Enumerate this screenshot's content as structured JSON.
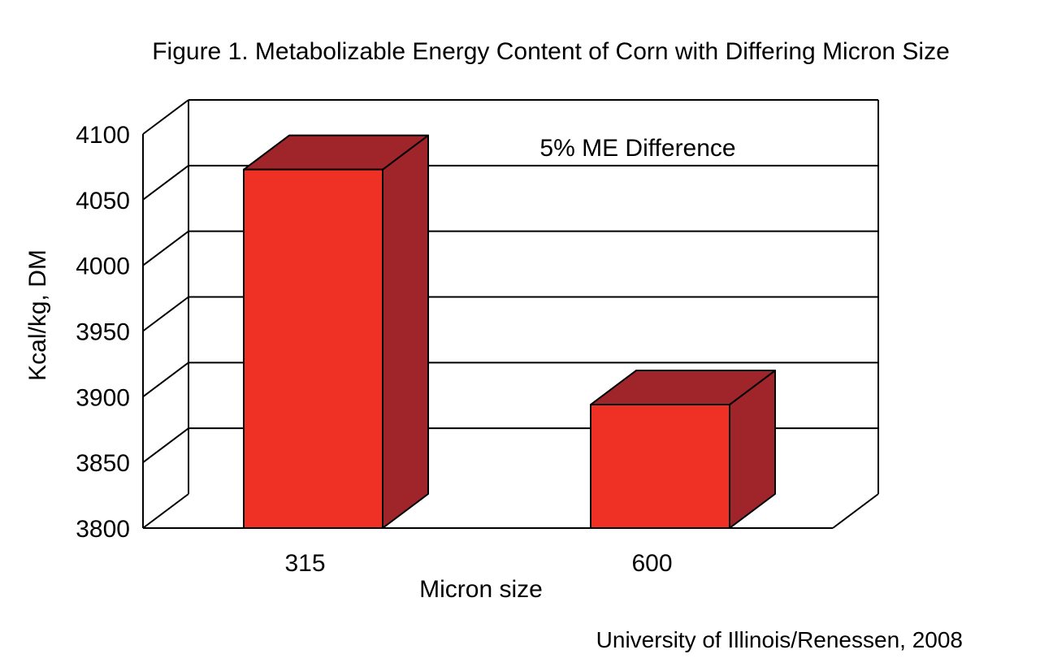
{
  "chart_data": {
    "type": "bar",
    "title": "Figure 1. Metabolizable Energy Content of Corn with Differing Micron Size",
    "xlabel": "Micron size",
    "ylabel": "Kcal/kg, DM",
    "categories": [
      "315",
      "600"
    ],
    "values": [
      4073,
      3894
    ],
    "ylim": [
      3800,
      4100
    ],
    "yticks": [
      "3800",
      "3850",
      "3900",
      "3950",
      "4000",
      "4050",
      "4100"
    ],
    "annotation": "5% ME Difference",
    "source": "University of Illinois/Renessen, 2008",
    "grid": true,
    "style": "3d",
    "colors": {
      "front": "#EE3124",
      "side": "#A0252A"
    }
  }
}
